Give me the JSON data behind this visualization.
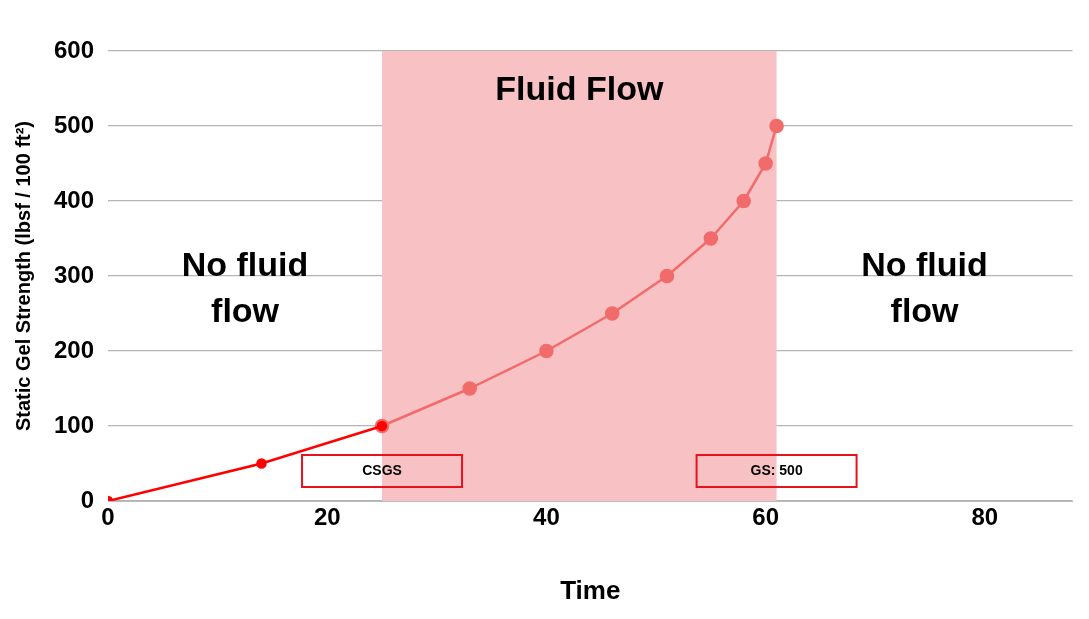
{
  "chart_data": {
    "type": "line",
    "xlabel": "Time",
    "ylabel": "Static Gel Strength (lbsf / 100 ft²)",
    "xlim": [
      0,
      88
    ],
    "xticks": [
      0,
      20,
      40,
      60,
      80
    ],
    "ylim": [
      0,
      600
    ],
    "yticks": [
      0,
      100,
      200,
      300,
      400,
      500,
      600
    ],
    "grid": "y",
    "marker": "circle",
    "line_style": "solid",
    "series": [
      {
        "color": "#ff0000",
        "x": [
          0,
          14,
          25
        ],
        "values": [
          0,
          50,
          100
        ]
      },
      {
        "color": "#f26b6b",
        "x": [
          25,
          33,
          40,
          46,
          51,
          55,
          58,
          60,
          61
        ],
        "values": [
          100,
          150,
          200,
          250,
          300,
          350,
          400,
          450,
          500
        ]
      }
    ],
    "bands": [
      {
        "axis": "x",
        "from": 25,
        "to": 61,
        "label": "Fluid Flow",
        "color": "#f8c1c4"
      }
    ],
    "annotations": [
      "No fluid flow",
      "No fluid flow",
      "CSGS",
      "GS: 500"
    ]
  }
}
